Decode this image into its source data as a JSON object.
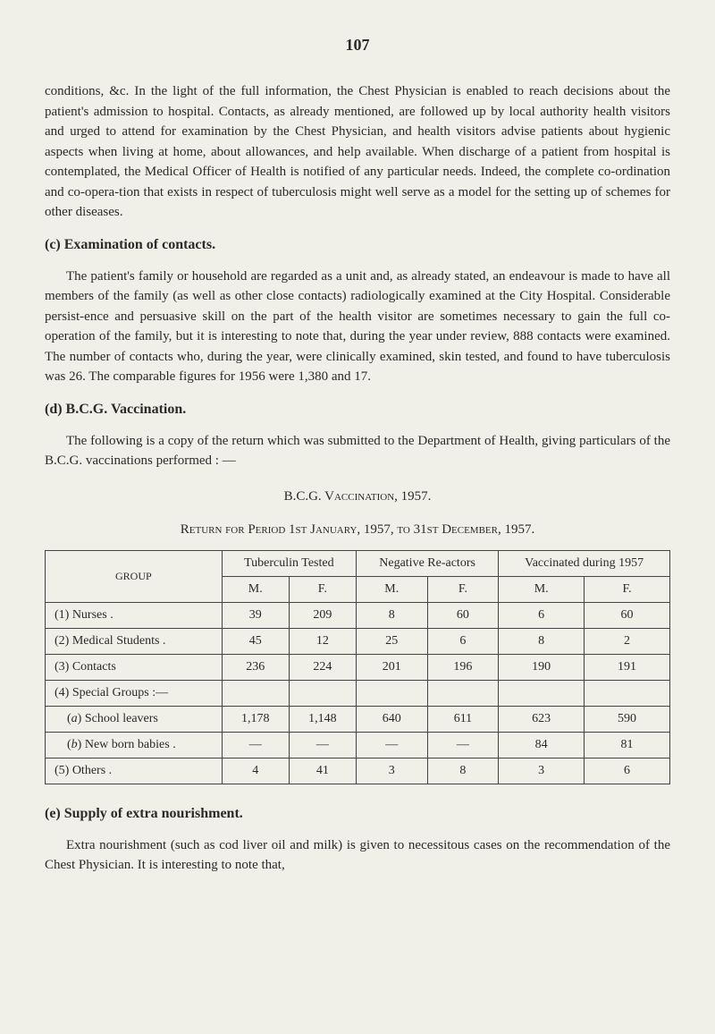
{
  "page_number": "107",
  "p1": "conditions, &c. In the light of the full information, the Chest Physician is enabled to reach decisions about the patient's admission to hospital. Contacts, as already mentioned, are followed up by local authority health visitors and urged to attend for examination by the Chest Physician, and health visitors advise patients about hygienic aspects when living at home, about allowances, and help available. When discharge of a patient from hospital is contemplated, the Medical Officer of Health is notified of any particular needs. Indeed, the complete co-ordination and co-opera-tion that exists in respect of tuberculosis might well serve as a model for the setting up of schemes for other diseases.",
  "heading_c": "(c) Examination of contacts.",
  "p2": "The patient's family or household are regarded as a unit and, as already stated, an endeavour is made to have all members of the family (as well as other close contacts) radiologically examined at the City Hospital. Considerable persist-ence and persuasive skill on the part of the health visitor are sometimes necessary to gain the full co-operation of the family, but it is interesting to note that, during the year under review, 888 contacts were examined. The number of contacts who, during the year, were clinically examined, skin tested, and found to have tuberculosis was 26. The comparable figures for 1956 were 1,380 and 17.",
  "heading_d": "(d) B.C.G. Vaccination.",
  "p3": "The following is a copy of the return which was submitted to the Department of Health, giving particulars of the B.C.G. vaccinations performed : —",
  "table_title_1": "B.C.G. Vaccination, 1957.",
  "table_title_2": "Return for Period 1st January, 1957, to 31st December, 1957.",
  "table": {
    "headers": {
      "group": "GROUP",
      "tuberculin": "Tuberculin Tested",
      "negative": "Negative Re-actors",
      "vaccinated": "Vaccinated during 1957",
      "m": "M.",
      "f": "F."
    },
    "rows": [
      {
        "label": "(1) Nurses .",
        "tm": "39",
        "tf": "209",
        "nm": "8",
        "nf": "60",
        "vm": "6",
        "vf": "60"
      },
      {
        "label": "(2) Medical Students .",
        "tm": "45",
        "tf": "12",
        "nm": "25",
        "nf": "6",
        "vm": "8",
        "vf": "2"
      },
      {
        "label": "(3) Contacts",
        "tm": "236",
        "tf": "224",
        "nm": "201",
        "nf": "196",
        "vm": "190",
        "vf": "191"
      },
      {
        "label": "(4) Special Groups :—",
        "tm": "",
        "tf": "",
        "nm": "",
        "nf": "",
        "vm": "",
        "vf": ""
      },
      {
        "label": "    (a) School leavers",
        "tm": "1,178",
        "tf": "1,148",
        "nm": "640",
        "nf": "611",
        "vm": "623",
        "vf": "590",
        "italic_a": true
      },
      {
        "label": "    (b) New born babies .",
        "tm": "—",
        "tf": "—",
        "nm": "—",
        "nf": "—",
        "vm": "84",
        "vf": "81",
        "italic_b": true
      },
      {
        "label": "(5) Others .",
        "tm": "4",
        "tf": "41",
        "nm": "3",
        "nf": "8",
        "vm": "3",
        "vf": "6"
      }
    ]
  },
  "heading_e": "(e) Supply of extra nourishment.",
  "p4": "Extra nourishment (such as cod liver oil and milk) is given to necessitous cases on the recommendation of the Chest Physician. It is interesting to note that,"
}
